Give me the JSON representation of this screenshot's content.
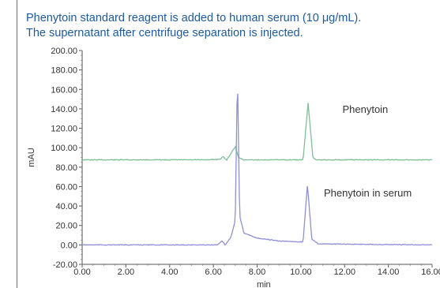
{
  "caption": {
    "line1": "Phenytoin standard reagent is added to human serum  (10 μg/mL).",
    "line2": "The supernatant after centrifuge separation is injected."
  },
  "chart_data": {
    "type": "line",
    "xlabel": "min",
    "ylabel": "mAU",
    "xlim": [
      0,
      16
    ],
    "ylim": [
      -20,
      200
    ],
    "x_ticks": [
      "0.00",
      "2.00",
      "4.00",
      "6.00",
      "8.00",
      "10.00",
      "12.00",
      "14.00",
      "16.00"
    ],
    "y_ticks": [
      "-20.00",
      "0.00",
      "20.00",
      "40.00",
      "60.00",
      "80.00",
      "100.00",
      "120.00",
      "140.00",
      "160.00",
      "180.00",
      "200.00"
    ],
    "grid": false,
    "colors": {
      "standard": "#7dbf97",
      "serum": "#8e8fd6"
    },
    "series": [
      {
        "name": "Phenytoin",
        "baseline": 87.5,
        "points": [
          [
            0,
            87.5
          ],
          [
            5.5,
            87.5
          ],
          [
            6.3,
            88
          ],
          [
            6.45,
            91
          ],
          [
            6.6,
            87
          ],
          [
            6.8,
            94
          ],
          [
            7.0,
            101
          ],
          [
            7.15,
            90
          ],
          [
            7.4,
            87.5
          ],
          [
            10.1,
            87.5
          ],
          [
            10.33,
            146
          ],
          [
            10.55,
            90
          ],
          [
            10.7,
            87.5
          ],
          [
            16,
            87.5
          ]
        ]
      },
      {
        "name": "Phenytoin in serum",
        "baseline": 0,
        "points": [
          [
            0,
            0
          ],
          [
            6.2,
            0
          ],
          [
            6.4,
            4
          ],
          [
            6.55,
            0
          ],
          [
            6.8,
            8
          ],
          [
            7.0,
            25
          ],
          [
            7.1,
            178
          ],
          [
            7.2,
            30
          ],
          [
            7.4,
            12
          ],
          [
            8.0,
            7
          ],
          [
            9.0,
            4
          ],
          [
            10.1,
            3
          ],
          [
            10.3,
            62
          ],
          [
            10.5,
            6
          ],
          [
            10.8,
            1
          ],
          [
            16,
            0
          ]
        ]
      }
    ]
  }
}
